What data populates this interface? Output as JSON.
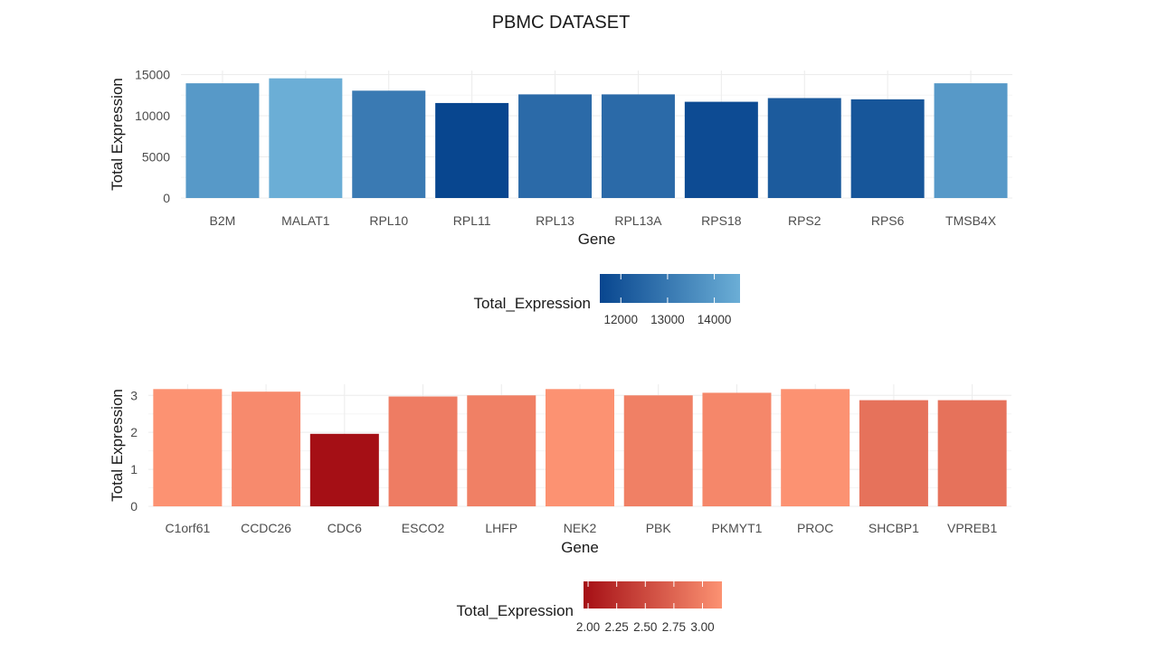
{
  "title": "PBMC DATASET",
  "chart_data": [
    {
      "type": "bar",
      "title": "",
      "xlabel": "Gene",
      "ylabel": "Total Expression",
      "categories": [
        "B2M",
        "MALAT1",
        "RPL10",
        "RPL11",
        "RPL13",
        "RPL13A",
        "RPS18",
        "RPS2",
        "RPS6",
        "TMSB4X"
      ],
      "values": [
        13950,
        14550,
        13050,
        11550,
        12600,
        12600,
        11700,
        12150,
        12000,
        13950
      ],
      "ylim": [
        0,
        15500
      ],
      "yticks": [
        0,
        5000,
        10000,
        15000
      ],
      "grid": true,
      "legend": {
        "title": "Total_Expression",
        "position": "bottom",
        "palette": "Blues",
        "low_color": "#08468f",
        "high_color": "#6baed6",
        "range": [
          11550,
          14550
        ],
        "ticks": [
          12000,
          13000,
          14000
        ]
      }
    },
    {
      "type": "bar",
      "title": "",
      "xlabel": "Gene",
      "ylabel": "Total Expression",
      "categories": [
        "C1orf61",
        "CCDC26",
        "CDC6",
        "ESCO2",
        "LHFP",
        "NEK2",
        "PBK",
        "PKMYT1",
        "PROC",
        "SHCBP1",
        "VPREB1"
      ],
      "values": [
        3.17,
        3.1,
        1.96,
        2.97,
        3.0,
        3.17,
        3.0,
        3.07,
        3.17,
        2.87,
        2.87
      ],
      "ylim": [
        0,
        3.3
      ],
      "yticks": [
        0,
        1,
        2,
        3
      ],
      "grid": true,
      "legend": {
        "title": "Total_Expression",
        "position": "bottom",
        "palette": "Reds",
        "low_color": "#a50f15",
        "high_color": "#fc9272",
        "range": [
          1.96,
          3.17
        ],
        "ticks": [
          "2.00",
          "2.25",
          "2.50",
          "2.75",
          "3.00"
        ]
      }
    }
  ]
}
